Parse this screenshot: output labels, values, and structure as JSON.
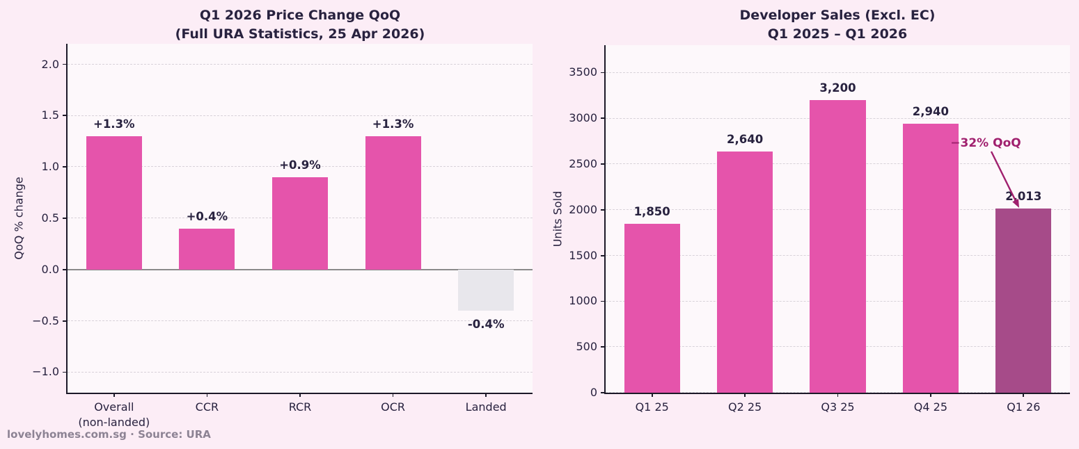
{
  "footer": "lovelyhomes.com.sg · Source: URA",
  "colors": {
    "background": "#fcedf6",
    "plot_background": "#fdf8fb",
    "bar_pink": "#e554ab",
    "bar_highlight": "#a64b89",
    "bar_muted": "#e8e7ec",
    "annotation": "#a0206e",
    "text": "#28223f",
    "grid": "#d8d2d9",
    "zero_line": "#8a8a8a",
    "axis": "#1c1928",
    "footer_text": "#8d8394"
  },
  "chart_data": [
    {
      "type": "bar",
      "title": "Q1 2026 Price Change QoQ",
      "subtitle": "(Full URA Statistics, 25 Apr 2026)",
      "ylabel": "QoQ % change",
      "xlabel": "",
      "categories": [
        "Overall\n(non-landed)",
        "CCR",
        "RCR",
        "OCR",
        "Landed"
      ],
      "values": [
        1.3,
        0.4,
        0.9,
        1.3,
        -0.4
      ],
      "bar_labels": [
        "+1.3%",
        "+0.4%",
        "+0.9%",
        "+1.3%",
        "-0.4%"
      ],
      "bar_colors": [
        "pink",
        "pink",
        "pink",
        "pink",
        "muted"
      ],
      "ylim": [
        -1.2,
        2.2
      ],
      "yticks": [
        2.0,
        1.5,
        1.0,
        0.5,
        0.0,
        -0.5,
        -1.0
      ],
      "ytick_labels": [
        "2.0",
        "1.5",
        "1.0",
        "0.5",
        "0.0",
        "−0.5",
        "−1.0"
      ],
      "grid": "horizontal-dashed",
      "legend": "none",
      "zero_line": true
    },
    {
      "type": "bar",
      "title": "Developer Sales (Excl. EC)",
      "subtitle": "Q1 2025 – Q1 2026",
      "ylabel": "Units Sold",
      "xlabel": "",
      "categories": [
        "Q1 25",
        "Q2 25",
        "Q3 25",
        "Q4 25",
        "Q1 26"
      ],
      "values": [
        1850,
        2640,
        3200,
        2940,
        2013
      ],
      "bar_labels": [
        "1,850",
        "2,640",
        "3,200",
        "2,940",
        "2,013"
      ],
      "bar_colors": [
        "pink",
        "pink",
        "pink",
        "pink",
        "highlight"
      ],
      "ylim": [
        0,
        3800
      ],
      "yticks": [
        3500,
        3000,
        2500,
        2000,
        1500,
        1000,
        500,
        0
      ],
      "ytick_labels": [
        "3500",
        "3000",
        "2500",
        "2000",
        "1500",
        "1000",
        "500",
        "0"
      ],
      "grid": "horizontal-dashed",
      "legend": "none",
      "zero_line": false,
      "annotation": {
        "text": "−32% QoQ"
      }
    }
  ]
}
